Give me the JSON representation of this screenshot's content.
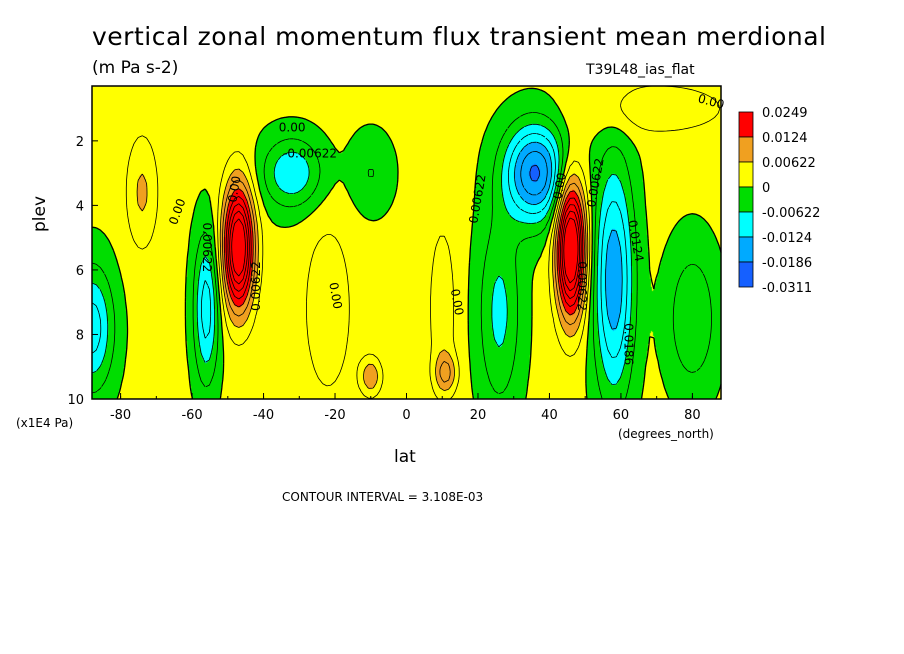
{
  "chart_data": {
    "type": "heatmap",
    "title": "vertical zonal momentum flux transient mean merdional",
    "units": "(m Pa s-2)",
    "run_label": "T39L48_ias_flat",
    "xlabel": "lat",
    "x_units": "(degrees_north)",
    "ylabel": "plev",
    "y_units": "(x1E4 Pa)",
    "contour_interval": "CONTOUR INTERVAL = 3.108E-03",
    "xlim": [
      -88,
      88
    ],
    "ylim": [
      10,
      0.3
    ],
    "x_ticks": [
      -80,
      -60,
      -40,
      -20,
      0,
      20,
      40,
      60,
      80
    ],
    "x_tick_labels": [
      "-80",
      "-60",
      "-40",
      "-20",
      "0",
      "20",
      "40",
      "60",
      "80"
    ],
    "y_ticks": [
      2,
      4,
      6,
      8,
      10
    ],
    "y_tick_labels": [
      "2",
      "4",
      "6",
      "8",
      "10"
    ],
    "colorbar": {
      "colors": [
        "#ff0000",
        "#f0a020",
        "#ffff00",
        "#00dd00",
        "#00ffff",
        "#00aaff",
        "#1560ff"
      ],
      "labels": [
        "0.0249",
        "0.0124",
        "0.00622",
        "0",
        "-0.00622",
        "-0.0124",
        "-0.0186",
        "-0.0311"
      ]
    },
    "contour_labels": [
      {
        "text": "0.00",
        "lat": 90,
        "plev": 0.8,
        "angle": 15
      },
      {
        "text": "0.00",
        "lat": -32,
        "plev": 1.6,
        "angle": 0
      },
      {
        "text": "-0.00622",
        "lat": -27,
        "plev": 2.4,
        "angle": 0
      },
      {
        "text": "0.00",
        "lat": -64,
        "plev": 4.2,
        "angle": -70
      },
      {
        "text": "0.00",
        "lat": -48,
        "plev": 3.5,
        "angle": -80
      },
      {
        "text": "0.00622",
        "lat": -56,
        "plev": 5.3,
        "angle": 90
      },
      {
        "text": "0.00622",
        "lat": -42,
        "plev": 6.5,
        "angle": -90
      },
      {
        "text": "0.00",
        "lat": -20,
        "plev": 6.8,
        "angle": 80
      },
      {
        "text": "0.00",
        "lat": 14,
        "plev": 7.0,
        "angle": 80
      },
      {
        "text": "0.00622",
        "lat": 20,
        "plev": 3.8,
        "angle": -80
      },
      {
        "text": "0.00",
        "lat": 43,
        "plev": 3.4,
        "angle": -80
      },
      {
        "text": "0.00622",
        "lat": 53,
        "plev": 3.3,
        "angle": -80
      },
      {
        "text": "0.0124",
        "lat": 64,
        "plev": 5.1,
        "angle": 80
      },
      {
        "text": "0.00622",
        "lat": 49,
        "plev": 6.5,
        "angle": 90
      },
      {
        "text": "0.0186",
        "lat": 62,
        "plev": 8.3,
        "angle": 90
      }
    ],
    "cells_note_levels": [
      "-0.0311..-0.0186",
      "-0.0186..-0.0124",
      "-0.0124..-0.00622",
      "-0.00622..0",
      "0..0.00622",
      "0.00622..0.0124",
      "0.0124..0.0249"
    ]
  }
}
